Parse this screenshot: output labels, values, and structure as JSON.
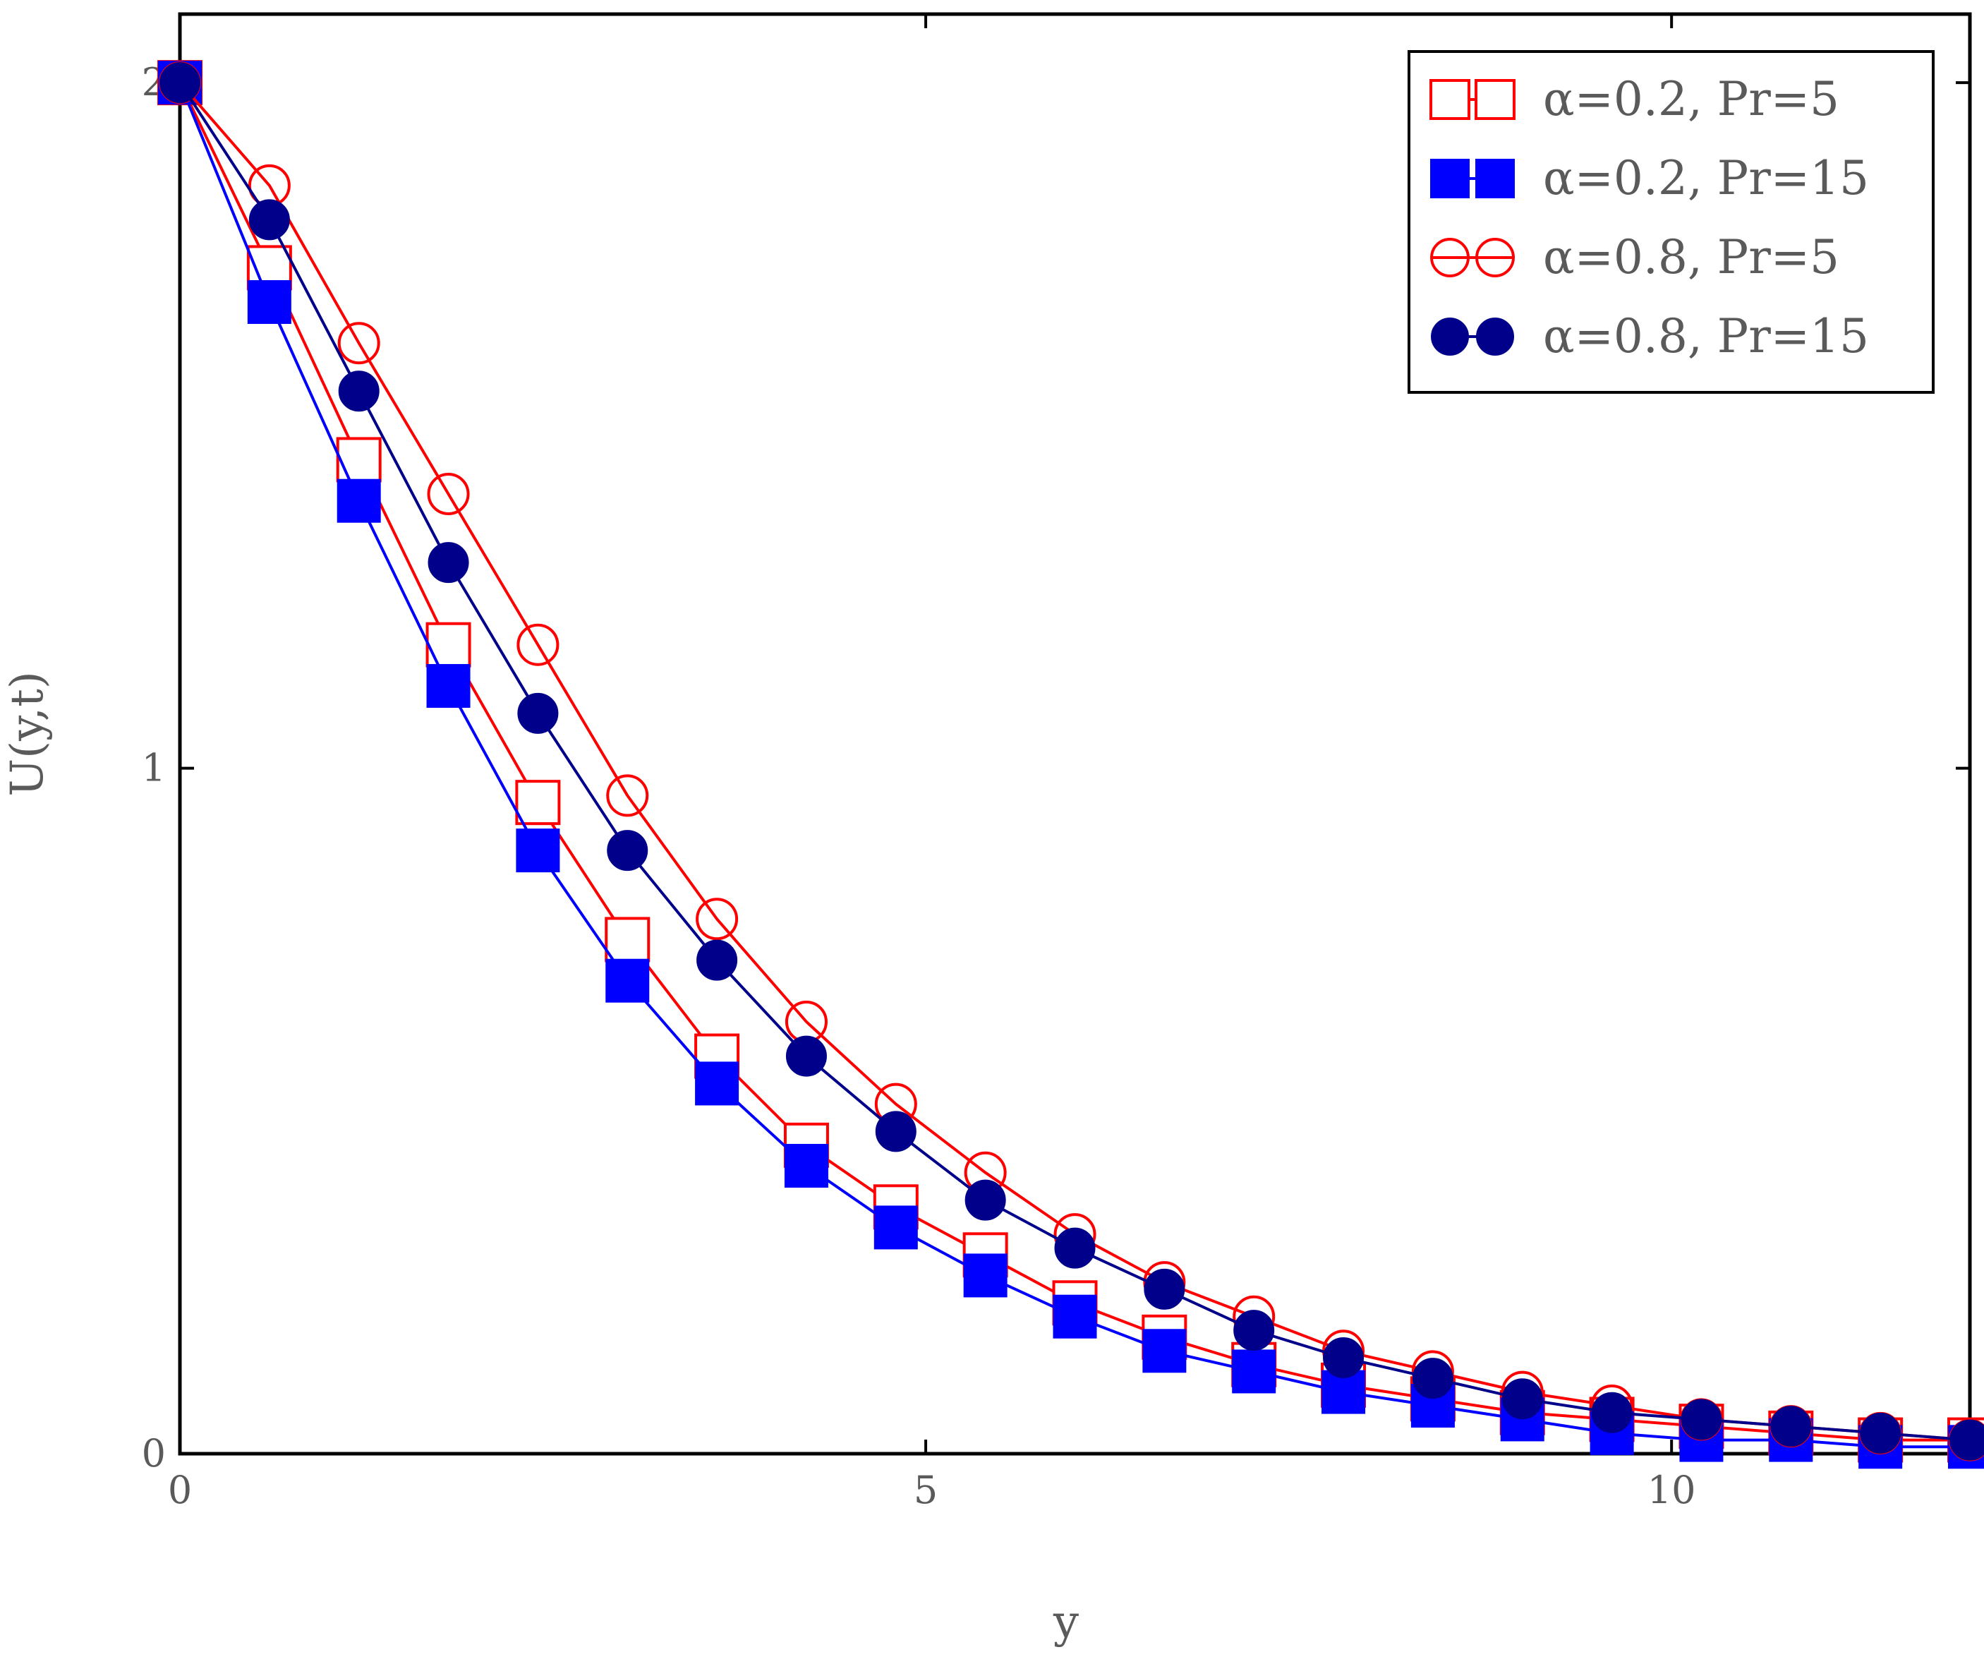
{
  "chart_data": {
    "type": "line",
    "title": "",
    "xlabel": "y",
    "ylabel": "U(y,t)",
    "xlim": [
      0,
      12
    ],
    "ylim": [
      0,
      2.1
    ],
    "xticks": [
      0,
      5,
      10
    ],
    "yticks": [
      0,
      1,
      2
    ],
    "xtick_labels": [
      "0",
      "5",
      "10"
    ],
    "ytick_labels": [
      "0",
      "1",
      "2"
    ],
    "grid": false,
    "legend_position": "top-right",
    "x": [
      0,
      0.6,
      1.2,
      1.8,
      2.4,
      3.0,
      3.6,
      4.2,
      4.8,
      5.4,
      6.0,
      6.6,
      7.2,
      7.8,
      8.4,
      9.0,
      9.6,
      10.2,
      10.8,
      11.4,
      12.0
    ],
    "series": [
      {
        "name": "α=0.2, Pr=5",
        "color": "#ff0000",
        "marker": "open-square",
        "values": [
          2.0,
          1.73,
          1.45,
          1.18,
          0.95,
          0.75,
          0.58,
          0.45,
          0.36,
          0.29,
          0.22,
          0.17,
          0.13,
          0.1,
          0.08,
          0.06,
          0.05,
          0.04,
          0.03,
          0.02,
          0.02
        ]
      },
      {
        "name": "α=0.2, Pr=15",
        "color": "#0000ff",
        "marker": "filled-square",
        "values": [
          2.0,
          1.68,
          1.39,
          1.12,
          0.88,
          0.69,
          0.54,
          0.42,
          0.33,
          0.26,
          0.2,
          0.15,
          0.12,
          0.09,
          0.07,
          0.05,
          0.03,
          0.02,
          0.02,
          0.01,
          0.01
        ]
      },
      {
        "name": "α=0.8, Pr=5",
        "color": "#ff0000",
        "marker": "open-circle",
        "values": [
          2.0,
          1.85,
          1.62,
          1.4,
          1.18,
          0.96,
          0.78,
          0.63,
          0.51,
          0.41,
          0.32,
          0.25,
          0.2,
          0.15,
          0.12,
          0.09,
          0.07,
          0.05,
          0.04,
          0.03,
          0.02
        ]
      },
      {
        "name": "α=0.8, Pr=15",
        "color": "#00008b",
        "marker": "filled-circle",
        "values": [
          2.0,
          1.8,
          1.55,
          1.3,
          1.08,
          0.88,
          0.72,
          0.58,
          0.47,
          0.37,
          0.3,
          0.24,
          0.18,
          0.14,
          0.11,
          0.08,
          0.06,
          0.05,
          0.04,
          0.03,
          0.02
        ]
      }
    ]
  }
}
